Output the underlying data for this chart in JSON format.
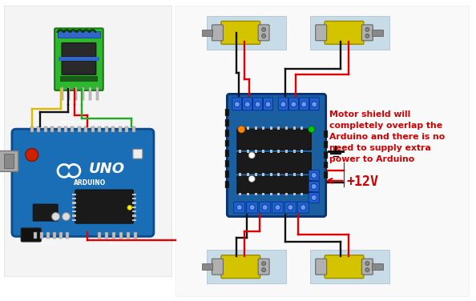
{
  "bg_color": "#ffffff",
  "annotation_text": "Motor shield will\ncompletely overlap the\nArduino and there is no\nneed to supply extra\npower to Arduino",
  "annotation_color": "#cc0000",
  "voltage_label": "+12V",
  "voltage_color": "#cc0000",
  "arrow_color": "#cc0000",
  "figsize": [
    5.94,
    3.76
  ],
  "dpi": 100,
  "component_colors": {
    "bt_pcb_green": "#2db82d",
    "bt_pcb_dark": "#1a7a1a",
    "arduino_blue": "#1a6eb5",
    "arduino_dark": "#0d4a8a",
    "shield_blue": "#1a5fa0",
    "motor_yellow": "#d4c400",
    "motor_cap_gray": "#b0b0b0",
    "motor_shaft_gray": "#888888",
    "motor_bg": "#c8dce8",
    "terminal_blue": "#2255bb",
    "chip_black": "#1a1a1a",
    "pin_silver": "#c0c0c0",
    "wire_red": "#dd0000",
    "wire_black": "#111111",
    "wire_yellow": "#ddbb00",
    "wire_green": "#22aa22"
  }
}
